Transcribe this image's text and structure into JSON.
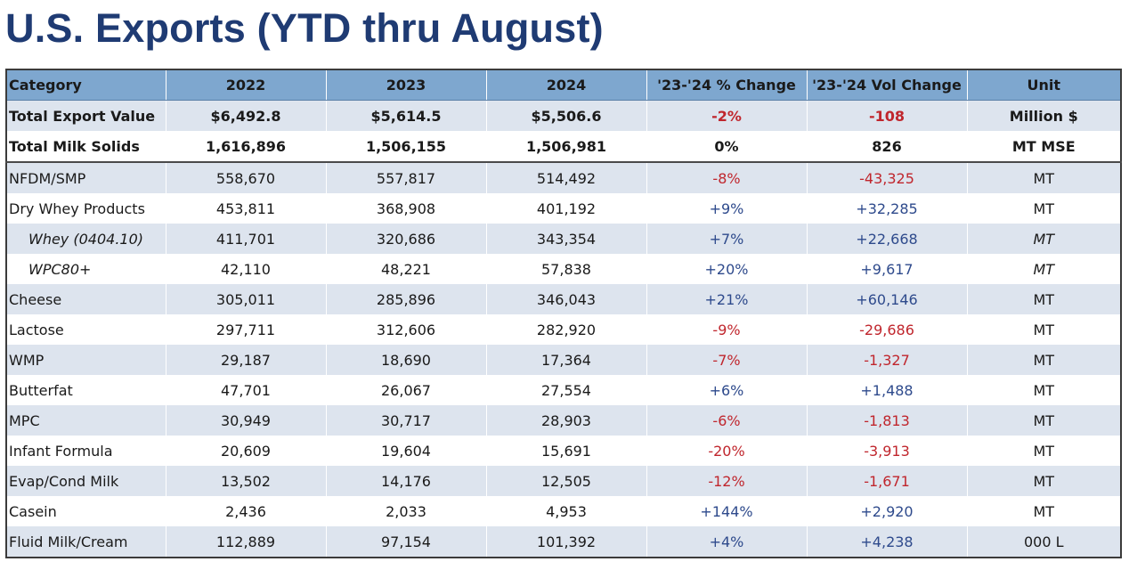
{
  "title": "U.S. Exports (YTD thru August)",
  "colors": {
    "title": "#1f3b73",
    "header_bg": "#7ea7cf",
    "row_shade": "#dde4ee",
    "negative": "#c0262d",
    "positive": "#2e4a8c"
  },
  "headers": [
    "Category",
    "2022",
    "2023",
    "2024",
    "'23-'24 % Change",
    "'23-'24 Vol Change",
    "Unit"
  ],
  "rows": [
    {
      "category": "Total Export Value",
      "y2022": "$6,492.8",
      "y2023": "$5,614.5",
      "y2024": "$5,506.6",
      "pct": "-2%",
      "vol": "-108",
      "unit": "Million $",
      "type": "total",
      "sign": "neg"
    },
    {
      "category": "Total Milk Solids",
      "y2022": "1,616,896",
      "y2023": "1,506,155",
      "y2024": "1,506,981",
      "pct": "0%",
      "vol": "826",
      "unit": "MT MSE",
      "type": "total",
      "sign": "neu"
    },
    {
      "category": "NFDM/SMP",
      "y2022": "558,670",
      "y2023": "557,817",
      "y2024": "514,492",
      "pct": "-8%",
      "vol": "-43,325",
      "unit": "MT",
      "type": "row",
      "sign": "neg"
    },
    {
      "category": "Dry Whey Products",
      "y2022": "453,811",
      "y2023": "368,908",
      "y2024": "401,192",
      "pct": "+9%",
      "vol": "+32,285",
      "unit": "MT",
      "type": "row",
      "sign": "pos"
    },
    {
      "category": "Whey (0404.10)",
      "y2022": "411,701",
      "y2023": "320,686",
      "y2024": "343,354",
      "pct": "+7%",
      "vol": "+22,668",
      "unit": "MT",
      "type": "sub",
      "sign": "pos"
    },
    {
      "category": "WPC80+",
      "y2022": "42,110",
      "y2023": "48,221",
      "y2024": "57,838",
      "pct": "+20%",
      "vol": "+9,617",
      "unit": "MT",
      "type": "sub",
      "sign": "pos"
    },
    {
      "category": "Cheese",
      "y2022": "305,011",
      "y2023": "285,896",
      "y2024": "346,043",
      "pct": "+21%",
      "vol": "+60,146",
      "unit": "MT",
      "type": "row",
      "sign": "pos"
    },
    {
      "category": "Lactose",
      "y2022": "297,711",
      "y2023": "312,606",
      "y2024": "282,920",
      "pct": "-9%",
      "vol": "-29,686",
      "unit": "MT",
      "type": "row",
      "sign": "neg"
    },
    {
      "category": "WMP",
      "y2022": "29,187",
      "y2023": "18,690",
      "y2024": "17,364",
      "pct": "-7%",
      "vol": "-1,327",
      "unit": "MT",
      "type": "row",
      "sign": "neg"
    },
    {
      "category": "Butterfat",
      "y2022": "47,701",
      "y2023": "26,067",
      "y2024": "27,554",
      "pct": "+6%",
      "vol": "+1,488",
      "unit": "MT",
      "type": "row",
      "sign": "pos"
    },
    {
      "category": "MPC",
      "y2022": "30,949",
      "y2023": "30,717",
      "y2024": "28,903",
      "pct": "-6%",
      "vol": "-1,813",
      "unit": "MT",
      "type": "row",
      "sign": "neg"
    },
    {
      "category": "Infant Formula",
      "y2022": "20,609",
      "y2023": "19,604",
      "y2024": "15,691",
      "pct": "-20%",
      "vol": "-3,913",
      "unit": "MT",
      "type": "row",
      "sign": "neg"
    },
    {
      "category": "Evap/Cond Milk",
      "y2022": "13,502",
      "y2023": "14,176",
      "y2024": "12,505",
      "pct": "-12%",
      "vol": "-1,671",
      "unit": "MT",
      "type": "row",
      "sign": "neg"
    },
    {
      "category": "Casein",
      "y2022": "2,436",
      "y2023": "2,033",
      "y2024": "4,953",
      "pct": "+144%",
      "vol": "+2,920",
      "unit": "MT",
      "type": "row",
      "sign": "pos"
    },
    {
      "category": "Fluid Milk/Cream",
      "y2022": "112,889",
      "y2023": "97,154",
      "y2024": "101,392",
      "pct": "+4%",
      "vol": "+4,238",
      "unit": "000 L",
      "type": "row",
      "sign": "pos"
    }
  ]
}
